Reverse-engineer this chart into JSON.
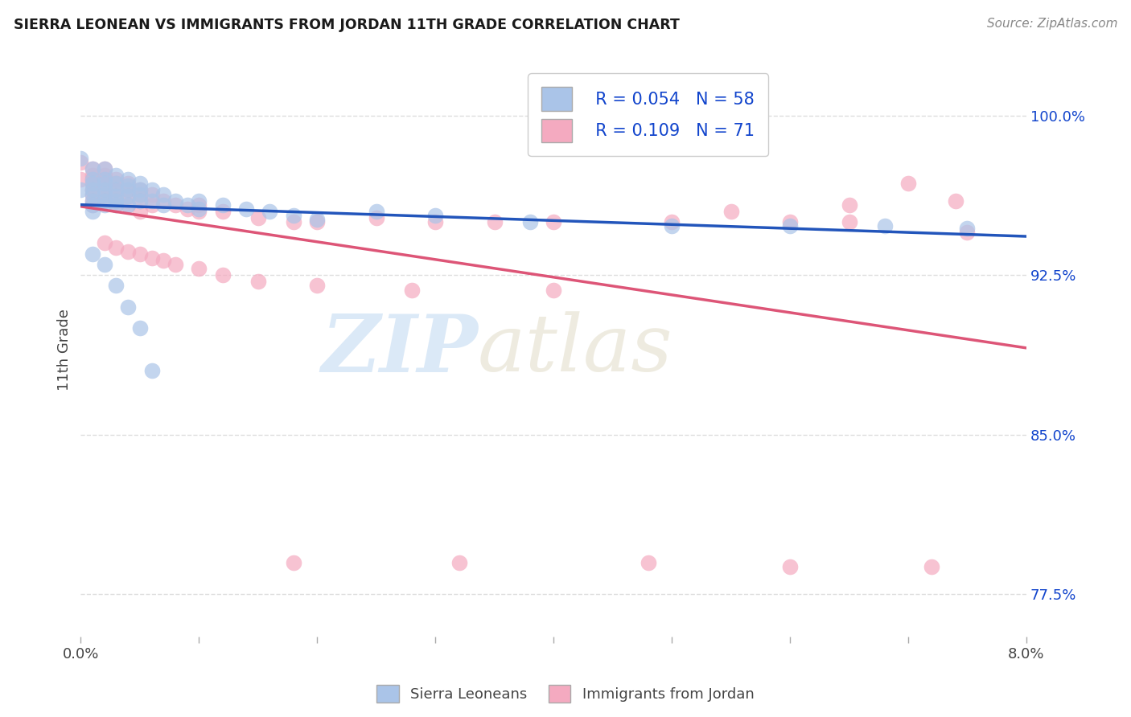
{
  "title": "SIERRA LEONEAN VS IMMIGRANTS FROM JORDAN 11TH GRADE CORRELATION CHART",
  "source": "Source: ZipAtlas.com",
  "ylabel": "11th Grade",
  "ytick_vals": [
    0.775,
    0.85,
    0.925,
    1.0
  ],
  "ytick_labels": [
    "77.5%",
    "85.0%",
    "92.5%",
    "100.0%"
  ],
  "xmin": 0.0,
  "xmax": 0.08,
  "ymin": 0.755,
  "ymax": 1.025,
  "legend_r1": "R = 0.054",
  "legend_n1": "N = 58",
  "legend_r2": "R = 0.109",
  "legend_n2": "N = 71",
  "blue_color": "#aac4e8",
  "pink_color": "#f4aac0",
  "trendline_blue": "#2255bb",
  "trendline_pink": "#dd5577",
  "legend_text_color": "#1144cc",
  "label1": "Sierra Leoneans",
  "label2": "Immigrants from Jordan",
  "watermark_zip": "ZIP",
  "watermark_atlas": "atlas",
  "sierra_x": [
    0.0,
    0.0,
    0.001,
    0.001,
    0.001,
    0.001,
    0.001,
    0.001,
    0.001,
    0.001,
    0.002,
    0.002,
    0.002,
    0.002,
    0.002,
    0.002,
    0.002,
    0.003,
    0.003,
    0.003,
    0.003,
    0.003,
    0.003,
    0.004,
    0.004,
    0.004,
    0.004,
    0.004,
    0.005,
    0.005,
    0.005,
    0.005,
    0.006,
    0.006,
    0.007,
    0.007,
    0.008,
    0.009,
    0.01,
    0.01,
    0.012,
    0.014,
    0.016,
    0.018,
    0.02,
    0.025,
    0.03,
    0.038,
    0.05,
    0.06,
    0.068,
    0.075,
    0.001,
    0.002,
    0.003,
    0.004,
    0.005,
    0.006
  ],
  "sierra_y": [
    0.98,
    0.965,
    0.975,
    0.97,
    0.968,
    0.965,
    0.963,
    0.96,
    0.958,
    0.955,
    0.975,
    0.97,
    0.968,
    0.965,
    0.963,
    0.96,
    0.958,
    0.972,
    0.968,
    0.965,
    0.962,
    0.96,
    0.958,
    0.97,
    0.967,
    0.965,
    0.962,
    0.958,
    0.968,
    0.965,
    0.963,
    0.96,
    0.965,
    0.96,
    0.963,
    0.958,
    0.96,
    0.958,
    0.96,
    0.956,
    0.958,
    0.956,
    0.955,
    0.953,
    0.951,
    0.955,
    0.953,
    0.95,
    0.948,
    0.948,
    0.948,
    0.947,
    0.935,
    0.93,
    0.92,
    0.91,
    0.9,
    0.88
  ],
  "jordan_x": [
    0.0,
    0.0,
    0.001,
    0.001,
    0.001,
    0.001,
    0.001,
    0.001,
    0.001,
    0.001,
    0.002,
    0.002,
    0.002,
    0.002,
    0.002,
    0.002,
    0.002,
    0.003,
    0.003,
    0.003,
    0.003,
    0.003,
    0.004,
    0.004,
    0.004,
    0.004,
    0.005,
    0.005,
    0.005,
    0.005,
    0.006,
    0.006,
    0.007,
    0.008,
    0.009,
    0.01,
    0.01,
    0.012,
    0.015,
    0.018,
    0.02,
    0.025,
    0.03,
    0.035,
    0.04,
    0.05,
    0.06,
    0.065,
    0.07,
    0.075,
    0.002,
    0.003,
    0.004,
    0.005,
    0.006,
    0.007,
    0.008,
    0.01,
    0.012,
    0.015,
    0.02,
    0.028,
    0.04,
    0.055,
    0.065,
    0.074,
    0.018,
    0.032,
    0.048,
    0.06,
    0.072
  ],
  "jordan_y": [
    0.978,
    0.97,
    0.975,
    0.972,
    0.97,
    0.968,
    0.965,
    0.963,
    0.96,
    0.958,
    0.975,
    0.972,
    0.97,
    0.968,
    0.965,
    0.962,
    0.96,
    0.97,
    0.968,
    0.965,
    0.962,
    0.958,
    0.968,
    0.965,
    0.962,
    0.958,
    0.965,
    0.963,
    0.96,
    0.955,
    0.963,
    0.958,
    0.96,
    0.958,
    0.956,
    0.958,
    0.955,
    0.955,
    0.952,
    0.95,
    0.95,
    0.952,
    0.95,
    0.95,
    0.95,
    0.95,
    0.95,
    0.95,
    0.968,
    0.945,
    0.94,
    0.938,
    0.936,
    0.935,
    0.933,
    0.932,
    0.93,
    0.928,
    0.925,
    0.922,
    0.92,
    0.918,
    0.918,
    0.955,
    0.958,
    0.96,
    0.79,
    0.79,
    0.79,
    0.788,
    0.788
  ],
  "xtick_positions": [
    0.0,
    0.01,
    0.02,
    0.03,
    0.04,
    0.05,
    0.06,
    0.07,
    0.08
  ],
  "xtick_labels": [
    "0.0%",
    "",
    "",
    "",
    "",
    "",
    "",
    "",
    "8.0%"
  ]
}
